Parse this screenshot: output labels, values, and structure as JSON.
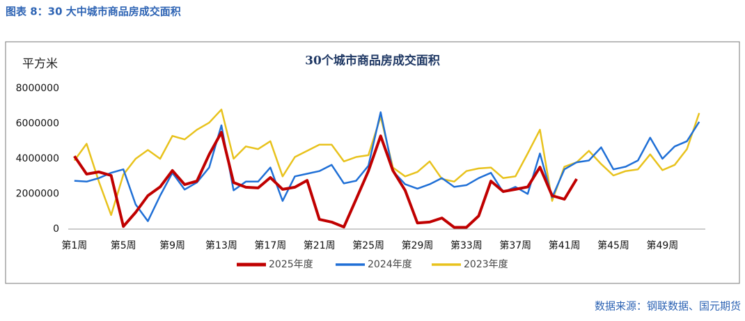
{
  "header": "图表 8：30 大中城市商品房成交面积",
  "source": "数据来源：钢联数据、国元期货",
  "chart_data": {
    "type": "line",
    "title": "30个城市商品房成交面积",
    "y_label": "平方米",
    "categories": [
      "第1周",
      null,
      null,
      null,
      "第5周",
      null,
      null,
      null,
      "第9周",
      null,
      null,
      null,
      "第13周",
      null,
      null,
      null,
      "第17周",
      null,
      null,
      null,
      "第21周",
      null,
      null,
      null,
      "第25周",
      null,
      null,
      null,
      "第29周",
      null,
      null,
      null,
      "第33周",
      null,
      null,
      null,
      "第37周",
      null,
      null,
      null,
      "第41周",
      null,
      null,
      null,
      "第45周",
      null,
      null,
      null,
      "第49周",
      null,
      null,
      null
    ],
    "series": [
      {
        "name": "2025年度",
        "color": "#c00000",
        "width": 4,
        "values": [
          4150000,
          3130000,
          3250000,
          3050000,
          150000,
          950000,
          1900000,
          2400000,
          3330000,
          2530000,
          2730000,
          4240000,
          5500000,
          2650000,
          2380000,
          2340000,
          2930000,
          2260000,
          2380000,
          2770000,
          550000,
          400000,
          120000,
          1700000,
          3300000,
          5300000,
          3330000,
          2200000,
          350000,
          400000,
          630000,
          100000,
          100000,
          750000,
          2730000,
          2140000,
          2260000,
          2400000,
          3520000,
          1900000,
          1700000,
          2850000,
          null,
          null,
          null,
          null,
          null,
          null,
          null,
          null,
          null,
          null
        ]
      },
      {
        "name": "2024年度",
        "color": "#1f6fd6",
        "width": 2.5,
        "values": [
          2750000,
          2700000,
          2900000,
          3200000,
          3400000,
          1400000,
          450000,
          1900000,
          3200000,
          2250000,
          2650000,
          3500000,
          5900000,
          2200000,
          2700000,
          2700000,
          3500000,
          1600000,
          3000000,
          3150000,
          3300000,
          3650000,
          2600000,
          2750000,
          3600000,
          6650000,
          3300000,
          2550000,
          2300000,
          2550000,
          2900000,
          2400000,
          2500000,
          2900000,
          3200000,
          2100000,
          2400000,
          2000000,
          4300000,
          1800000,
          3400000,
          3800000,
          3900000,
          4650000,
          3400000,
          3550000,
          3900000,
          5200000,
          4000000,
          4700000,
          5000000,
          6100000
        ]
      },
      {
        "name": "2023年度",
        "color": "#e8c21c",
        "width": 2.5,
        "values": [
          3900000,
          4850000,
          2700000,
          800000,
          3100000,
          4000000,
          4500000,
          4000000,
          5300000,
          5100000,
          5650000,
          6050000,
          6800000,
          4000000,
          4700000,
          4550000,
          5000000,
          3000000,
          4100000,
          4450000,
          4800000,
          4800000,
          3850000,
          4100000,
          4200000,
          6400000,
          3500000,
          3000000,
          3250000,
          3850000,
          2850000,
          2700000,
          3300000,
          3450000,
          3500000,
          2900000,
          3000000,
          4300000,
          5650000,
          1600000,
          3550000,
          3800000,
          4450000,
          3700000,
          3050000,
          3300000,
          3400000,
          4250000,
          3350000,
          3650000,
          4550000,
          6600000
        ]
      }
    ],
    "ylim": [
      0,
      8000000
    ],
    "yticks": [
      0,
      2000000,
      4000000,
      6000000,
      8000000
    ],
    "grid": false
  }
}
